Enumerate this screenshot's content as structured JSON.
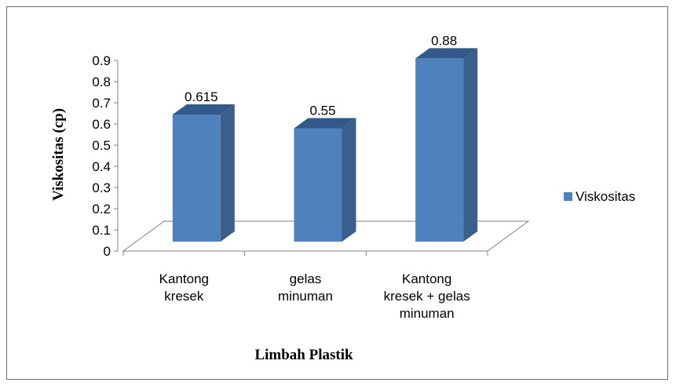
{
  "chart_data": {
    "type": "bar",
    "categories": [
      [
        "Kantong",
        "kresek"
      ],
      [
        "gelas",
        "minuman"
      ],
      [
        "Kantong",
        "kresek + gelas",
        "minuman"
      ]
    ],
    "series": [
      {
        "name": "Viskositas",
        "values": [
          0.615,
          0.55,
          0.88
        ],
        "color": "#4f81bd"
      }
    ],
    "data_labels": [
      "0.615",
      "0.55",
      "0.88"
    ],
    "y_ticks": [
      "0",
      "0.1",
      "0.2",
      "0.3",
      "0.4",
      "0.5",
      "0.6",
      "0.7",
      "0.8",
      "0.9"
    ],
    "ylim": [
      0,
      0.9
    ],
    "xlabel": "Limbah Plastik",
    "ylabel": "Viskositas (cp)",
    "legend_position": "right",
    "style": "3d-column"
  }
}
